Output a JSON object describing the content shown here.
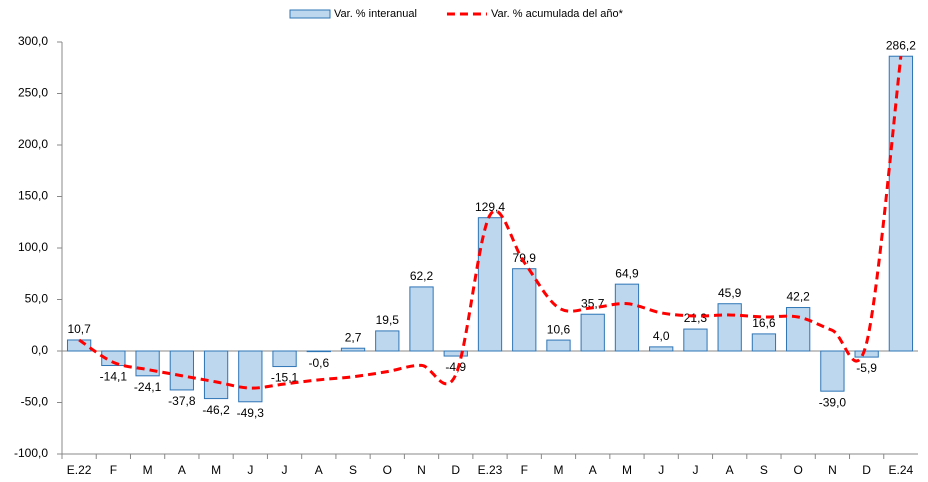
{
  "chart_data": {
    "type": "bar-line",
    "categories": [
      "E.22",
      "F",
      "M",
      "A",
      "M",
      "J",
      "J",
      "A",
      "S",
      "O",
      "N",
      "D",
      "E.23",
      "F",
      "M",
      "A",
      "M",
      "J",
      "J",
      "A",
      "S",
      "O",
      "N",
      "D",
      "E.24"
    ],
    "series": [
      {
        "name": "Var. % interanual",
        "type": "bar",
        "color": "#bdd7ee",
        "stroke": "#2e75b6",
        "values": [
          10.7,
          -14.1,
          -24.1,
          -37.8,
          -46.2,
          -49.3,
          -15.1,
          -0.6,
          2.7,
          19.5,
          62.2,
          -4.9,
          129.4,
          79.9,
          10.6,
          35.7,
          64.9,
          4.0,
          21.3,
          45.9,
          16.6,
          42.2,
          -39.0,
          -5.9,
          286.2
        ],
        "value_labels": [
          "10,7",
          "-14,1",
          "-24,1",
          "-37,8",
          "-46,2",
          "-49,3",
          "-15,1",
          "-0,6",
          "2,7",
          "19,5",
          "62,2",
          "-4,9",
          "129,4",
          "79,9",
          "10,6",
          "35,7",
          "64,9",
          "4,0",
          "21,3",
          "45,9",
          "16,6",
          "42,2",
          "-39,0",
          "-5,9",
          "286,2"
        ]
      },
      {
        "name": "Var. % acumulada del año*",
        "type": "line",
        "color": "#ff0000",
        "values": [
          10.7,
          -11,
          -18,
          -24,
          -30,
          -36,
          -32,
          -28,
          -25,
          -20,
          -14,
          -23,
          132,
          86,
          42,
          42,
          46,
          37,
          34,
          35,
          33,
          33,
          20,
          8,
          286.2
        ]
      }
    ],
    "ylim": [
      -100,
      300
    ],
    "yticks": [
      {
        "value": -100,
        "label": "-100,0"
      },
      {
        "value": -50,
        "label": "-50,0"
      },
      {
        "value": 0,
        "label": "0,0"
      },
      {
        "value": 50,
        "label": "50,0"
      },
      {
        "value": 100,
        "label": "100,0"
      },
      {
        "value": 150,
        "label": "150,0"
      },
      {
        "value": 200,
        "label": "200,0"
      },
      {
        "value": 250,
        "label": "250,0"
      },
      {
        "value": 300,
        "label": "300,0"
      }
    ],
    "legend": "top"
  }
}
